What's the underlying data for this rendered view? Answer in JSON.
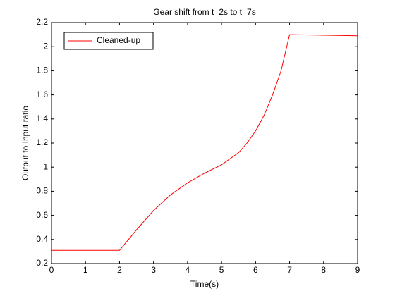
{
  "chart_data": {
    "type": "line",
    "title": "Gear shift from t=2s to t=7s",
    "xlabel": "Time(s)",
    "ylabel": "Output to Input ratio",
    "x": [
      0,
      2,
      2.5,
      3,
      3.5,
      4,
      4.5,
      5,
      5.5,
      5.75,
      6,
      6.25,
      6.5,
      6.75,
      6.9,
      7,
      9
    ],
    "series": [
      {
        "name": "Cleaned-up",
        "color": "#ff0000",
        "values": [
          0.31,
          0.31,
          0.48,
          0.64,
          0.77,
          0.87,
          0.95,
          1.02,
          1.12,
          1.2,
          1.3,
          1.43,
          1.6,
          1.8,
          1.98,
          2.1,
          2.09
        ]
      }
    ],
    "xlim": [
      0,
      9
    ],
    "ylim": [
      0.2,
      2.2
    ],
    "xticks": [
      0,
      1,
      2,
      3,
      4,
      5,
      6,
      7,
      8,
      9
    ],
    "yticks": [
      0.2,
      0.4,
      0.6,
      0.8,
      1,
      1.2,
      1.4,
      1.6,
      1.8,
      2,
      2.2
    ],
    "legend": "upper left"
  }
}
